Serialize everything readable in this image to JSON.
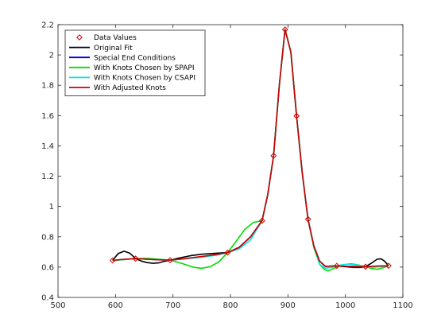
{
  "chart_data": {
    "type": "line",
    "xlim": [
      500,
      1100
    ],
    "ylim": [
      0.4,
      2.2
    ],
    "xticks": [
      "500",
      "600",
      "700",
      "800",
      "900",
      "1000",
      "1100"
    ],
    "yticks": [
      "0.4",
      "0.6",
      "0.8",
      "1",
      "1.2",
      "1.4",
      "1.6",
      "1.8",
      "2",
      "2.2"
    ],
    "grid": false,
    "legend_position": "top-left",
    "series": [
      {
        "name": "Data Values",
        "style": "markers",
        "marker": "diamond",
        "color": "#d40000",
        "x": [
          595,
          635,
          695,
          795,
          855,
          875,
          895,
          915,
          935,
          985,
          1035,
          1075
        ],
        "y": [
          0.644,
          0.656,
          0.646,
          0.696,
          0.906,
          1.335,
          2.168,
          1.598,
          0.916,
          0.608,
          0.603,
          0.609
        ]
      },
      {
        "name": "Original Fit",
        "style": "line",
        "color": "#000000",
        "x": [
          595,
          605,
          615,
          625,
          635,
          645,
          655,
          665,
          675,
          685,
          695,
          710,
          730,
          750,
          770,
          795,
          815,
          835,
          855,
          865,
          875,
          885,
          895,
          905,
          915,
          925,
          935,
          945,
          955,
          965,
          975,
          985,
          1000,
          1015,
          1025,
          1035,
          1045,
          1055,
          1062,
          1068,
          1075
        ],
        "y": [
          0.645,
          0.69,
          0.705,
          0.692,
          0.656,
          0.64,
          0.63,
          0.625,
          0.628,
          0.638,
          0.646,
          0.66,
          0.675,
          0.685,
          0.69,
          0.696,
          0.73,
          0.8,
          0.906,
          1.08,
          1.335,
          1.8,
          2.168,
          2.02,
          1.598,
          1.22,
          0.916,
          0.74,
          0.64,
          0.605,
          0.606,
          0.608,
          0.603,
          0.598,
          0.598,
          0.603,
          0.625,
          0.652,
          0.655,
          0.64,
          0.609
        ]
      },
      {
        "name": "Special End Conditions",
        "style": "line",
        "color": "#0000cc",
        "x": [
          595,
          615,
          635,
          655,
          675,
          695,
          720,
          750,
          775,
          795,
          815,
          835,
          855,
          865,
          875,
          885,
          895,
          905,
          915,
          925,
          935,
          945,
          955,
          965,
          975,
          985,
          1005,
          1035,
          1055,
          1075
        ],
        "y": [
          0.644,
          0.651,
          0.656,
          0.652,
          0.648,
          0.646,
          0.655,
          0.668,
          0.68,
          0.696,
          0.73,
          0.8,
          0.906,
          1.08,
          1.335,
          1.8,
          2.168,
          2.02,
          1.598,
          1.22,
          0.916,
          0.74,
          0.64,
          0.605,
          0.606,
          0.608,
          0.605,
          0.603,
          0.606,
          0.609
        ]
      },
      {
        "name": "With Knots Chosen by SPAPI",
        "style": "line",
        "color": "#00dd00",
        "x": [
          595,
          615,
          635,
          655,
          675,
          695,
          715,
          735,
          750,
          765,
          780,
          795,
          810,
          825,
          840,
          855,
          865,
          875,
          885,
          895,
          905,
          915,
          925,
          935,
          945,
          955,
          963,
          970,
          980,
          995,
          1010,
          1025,
          1035,
          1045,
          1055,
          1065,
          1075
        ],
        "y": [
          0.644,
          0.65,
          0.656,
          0.658,
          0.652,
          0.646,
          0.625,
          0.6,
          0.592,
          0.603,
          0.635,
          0.696,
          0.77,
          0.85,
          0.895,
          0.906,
          1.08,
          1.335,
          1.8,
          2.168,
          2.02,
          1.598,
          1.22,
          0.916,
          0.73,
          0.62,
          0.585,
          0.575,
          0.592,
          0.615,
          0.622,
          0.612,
          0.603,
          0.592,
          0.585,
          0.595,
          0.609
        ]
      },
      {
        "name": "With Knots Chosen by CSAPI",
        "style": "line",
        "color": "#00e5e5",
        "x": [
          595,
          615,
          635,
          655,
          675,
          695,
          720,
          750,
          775,
          795,
          815,
          835,
          855,
          865,
          875,
          885,
          895,
          905,
          915,
          925,
          935,
          945,
          955,
          965,
          975,
          990,
          1005,
          1020,
          1035,
          1050,
          1062,
          1075
        ],
        "y": [
          0.644,
          0.651,
          0.656,
          0.652,
          0.648,
          0.646,
          0.655,
          0.665,
          0.678,
          0.696,
          0.72,
          0.78,
          0.906,
          1.08,
          1.335,
          1.8,
          2.168,
          2.02,
          1.598,
          1.22,
          0.916,
          0.74,
          0.62,
          0.592,
          0.598,
          0.612,
          0.62,
          0.614,
          0.603,
          0.6,
          0.604,
          0.609
        ]
      },
      {
        "name": "With Adjusted Knots",
        "style": "line",
        "color": "#cc0000",
        "x": [
          595,
          615,
          635,
          655,
          675,
          695,
          720,
          750,
          775,
          795,
          815,
          835,
          855,
          865,
          875,
          885,
          895,
          905,
          915,
          925,
          935,
          945,
          955,
          965,
          975,
          985,
          1005,
          1035,
          1055,
          1075
        ],
        "y": [
          0.644,
          0.652,
          0.656,
          0.652,
          0.648,
          0.646,
          0.656,
          0.67,
          0.683,
          0.696,
          0.73,
          0.8,
          0.906,
          1.08,
          1.335,
          1.8,
          2.168,
          2.02,
          1.598,
          1.22,
          0.916,
          0.74,
          0.64,
          0.605,
          0.606,
          0.608,
          0.605,
          0.603,
          0.606,
          0.609
        ]
      }
    ]
  }
}
